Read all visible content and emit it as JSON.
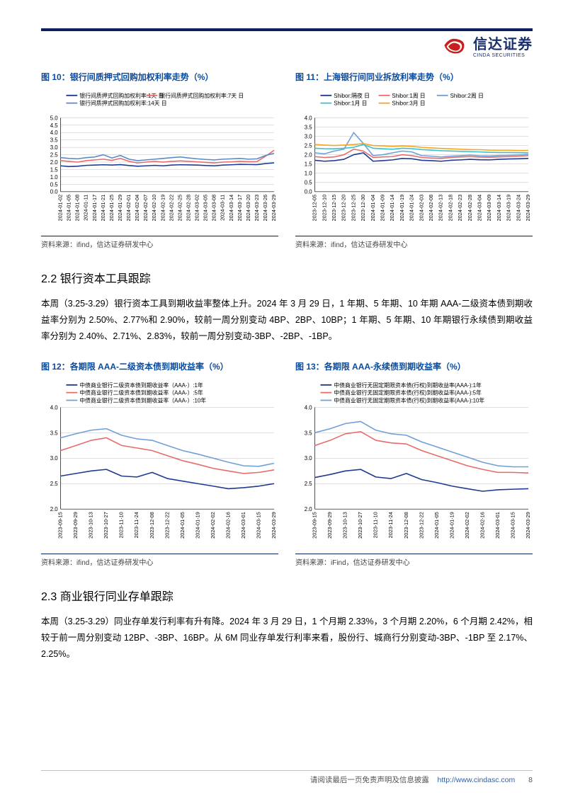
{
  "company": {
    "name": "信达证券",
    "sub": "CINDA SECURITIES"
  },
  "footer": {
    "disclaimer": "请阅读最后一页免责声明及信息披露",
    "url": "http://www.cindasc.com",
    "page": "8"
  },
  "charts": {
    "fig10": {
      "label": "图 10：",
      "title": "银行间质押式回购加权利率走势（%）",
      "source": "资料来源：ifind，信达证券研发中心",
      "legend": [
        {
          "name": "银行间质押式回购加权利率:1天 日",
          "color": "#1f3a93"
        },
        {
          "name": "银行间质押式回购加权利率:7天 日",
          "color": "#e86b6b"
        },
        {
          "name": "银行间质押式回购加权利率:14天 日",
          "color": "#5a89c7"
        }
      ],
      "y": {
        "min": 0.0,
        "max": 5.0,
        "step": 0.5,
        "fmt": 1
      },
      "x": [
        "2024-01-02",
        "2024-01-05",
        "2024-01-08",
        "2024-01-11",
        "2024-01-17",
        "2024-01-21",
        "2024-01-25",
        "2024-01-29",
        "2024-02-01",
        "2024-02-04",
        "2024-02-07",
        "2024-02-10",
        "2024-02-19",
        "2024-02-22",
        "2024-02-25",
        "2024-02-28",
        "2024-03-02",
        "2024-03-05",
        "2024-03-08",
        "2024-03-11",
        "2024-03-14",
        "2024-03-17",
        "2024-03-20",
        "2024-03-23",
        "2024-03-26",
        "2024-03-29"
      ],
      "series": [
        [
          1.75,
          1.7,
          1.72,
          1.78,
          1.8,
          1.82,
          1.8,
          1.83,
          1.77,
          1.72,
          1.75,
          1.78,
          1.75,
          1.8,
          1.82,
          1.81,
          1.8,
          1.77,
          1.75,
          1.8,
          1.82,
          1.85,
          1.84,
          1.83,
          1.9,
          1.95
        ],
        [
          2.1,
          2.05,
          2.0,
          2.1,
          2.15,
          2.2,
          2.12,
          2.25,
          2.05,
          1.95,
          2.0,
          2.05,
          2.0,
          2.05,
          2.08,
          2.05,
          2.02,
          1.98,
          1.95,
          2.0,
          2.02,
          2.05,
          2.03,
          2.04,
          2.4,
          2.8
        ],
        [
          2.3,
          2.25,
          2.22,
          2.3,
          2.35,
          2.5,
          2.28,
          2.45,
          2.2,
          2.1,
          2.15,
          2.2,
          2.25,
          2.3,
          2.35,
          2.28,
          2.22,
          2.18,
          2.15,
          2.2,
          2.22,
          2.25,
          2.2,
          2.22,
          2.45,
          2.6
        ]
      ],
      "bg": "#ffffff",
      "grid": "#bfbfbf",
      "axis_fontsize": 8
    },
    "fig11": {
      "label": "图 11：",
      "title": "上海银行间同业拆放利率走势（%）",
      "source": "资料来源：ifind，信达证券研发中心",
      "legend": [
        {
          "name": "Shibor:隔夜 日",
          "color": "#1f3a93"
        },
        {
          "name": "Shibor:1周 日",
          "color": "#e86b6b"
        },
        {
          "name": "Shibor:2周 日",
          "color": "#6f9fd8"
        },
        {
          "name": "Shibor:1月 日",
          "color": "#39c2c9"
        },
        {
          "name": "Shibor:3月 日",
          "color": "#f5a623"
        }
      ],
      "y": {
        "min": 0.0,
        "max": 4.0,
        "step": 0.5,
        "fmt": 1
      },
      "x": [
        "2023-12-05",
        "2023-12-10",
        "2023-12-15",
        "2023-12-20",
        "2023-12-25",
        "2023-12-30",
        "2024-01-04",
        "2024-01-09",
        "2024-01-14",
        "2024-01-19",
        "2024-01-24",
        "2024-02-03",
        "2024-02-08",
        "2024-02-13",
        "2024-02-18",
        "2024-02-23",
        "2024-02-28",
        "2024-03-04",
        "2024-03-09",
        "2024-03-14",
        "2024-03-19",
        "2024-03-24",
        "2024-03-29"
      ],
      "series": [
        [
          1.7,
          1.65,
          1.68,
          1.75,
          2.0,
          2.1,
          1.65,
          1.68,
          1.72,
          1.8,
          1.78,
          1.7,
          1.68,
          1.65,
          1.7,
          1.72,
          1.75,
          1.73,
          1.72,
          1.75,
          1.77,
          1.78,
          1.8
        ],
        [
          1.9,
          1.85,
          1.88,
          2.0,
          2.3,
          2.2,
          1.85,
          1.88,
          1.9,
          2.0,
          1.95,
          1.85,
          1.82,
          1.8,
          1.85,
          1.88,
          1.9,
          1.87,
          1.86,
          1.88,
          1.9,
          1.92,
          1.95
        ],
        [
          2.1,
          2.05,
          2.2,
          2.3,
          3.2,
          2.6,
          1.95,
          2.0,
          2.1,
          2.2,
          2.15,
          1.95,
          1.92,
          1.88,
          1.92,
          1.95,
          1.98,
          1.94,
          1.93,
          1.96,
          1.97,
          1.99,
          2.02
        ],
        [
          2.35,
          2.33,
          2.32,
          2.35,
          2.4,
          2.55,
          2.35,
          2.32,
          2.3,
          2.35,
          2.33,
          2.28,
          2.25,
          2.22,
          2.2,
          2.18,
          2.17,
          2.15,
          2.13,
          2.12,
          2.12,
          2.11,
          2.1
        ],
        [
          2.55,
          2.52,
          2.5,
          2.52,
          2.55,
          2.6,
          2.5,
          2.48,
          2.45,
          2.48,
          2.45,
          2.4,
          2.37,
          2.34,
          2.32,
          2.3,
          2.28,
          2.27,
          2.25,
          2.24,
          2.24,
          2.23,
          2.23
        ]
      ],
      "bg": "#ffffff",
      "grid": "#bfbfbf",
      "axis_fontsize": 8
    },
    "fig12": {
      "label": "图 12：",
      "title": "各期限 AAA-二级资本债到期收益率（%）",
      "source": "资料来源：ifind，信达证券研发中心",
      "legend": [
        {
          "name": "中债商业银行二级资本债到期收益率（AAA-）:1年",
          "color": "#1f3a93"
        },
        {
          "name": "中债商业银行二级资本债到期收益率（AAA-）:5年",
          "color": "#e86b6b"
        },
        {
          "name": "中债商业银行二级资本债到期收益率（AAA-）:10年",
          "color": "#6f9fd8"
        }
      ],
      "y": {
        "min": 2.0,
        "max": 4.0,
        "step": 0.5,
        "fmt": 1
      },
      "x": [
        "2023-09-15",
        "2023-09-29",
        "2023-10-13",
        "2023-10-27",
        "2023-11-10",
        "2023-11-24",
        "2023-12-08",
        "2023-12-22",
        "2024-01-05",
        "2024-01-19",
        "2024-02-02",
        "2024-02-16",
        "2024-03-01",
        "2024-03-15",
        "2024-03-29"
      ],
      "series": [
        [
          2.65,
          2.7,
          2.75,
          2.78,
          2.65,
          2.63,
          2.72,
          2.6,
          2.55,
          2.5,
          2.45,
          2.4,
          2.42,
          2.45,
          2.5
        ],
        [
          3.15,
          3.25,
          3.35,
          3.4,
          3.25,
          3.2,
          3.15,
          3.05,
          2.95,
          2.88,
          2.8,
          2.75,
          2.7,
          2.72,
          2.77
        ],
        [
          3.4,
          3.48,
          3.55,
          3.58,
          3.45,
          3.38,
          3.35,
          3.25,
          3.15,
          3.08,
          3.0,
          2.92,
          2.85,
          2.84,
          2.9
        ]
      ],
      "bg": "#ffffff",
      "grid": "#bfbfbf",
      "axis_fontsize": 8
    },
    "fig13": {
      "label": "图 13：",
      "title": "各期限 AAA-永续债到期收益率（%）",
      "source": "资料来源：iFind，信达证券研发中心",
      "legend": [
        {
          "name": "中债商业银行无固定期限资本债(行权)到期收益率(AAA-):1年",
          "color": "#1f3a93"
        },
        {
          "name": "中债商业银行无固定期限资本债(行权)到期收益率(AAA-):5年",
          "color": "#e86b6b"
        },
        {
          "name": "中债商业银行无固定期限资本债(行权)到期收益率(AAA-):10年",
          "color": "#6f9fd8"
        }
      ],
      "y": {
        "min": 2.0,
        "max": 4.0,
        "step": 0.5,
        "fmt": 1
      },
      "x": [
        "2023-09-15",
        "2023-09-29",
        "2023-10-13",
        "2023-10-27",
        "2023-11-10",
        "2023-11-24",
        "2023-12-08",
        "2023-12-22",
        "2024-01-05",
        "2024-01-19",
        "2024-02-02",
        "2024-02-16",
        "2024-03-01",
        "2024-03-15",
        "2024-03-29"
      ],
      "series": [
        [
          2.62,
          2.68,
          2.75,
          2.78,
          2.63,
          2.6,
          2.7,
          2.58,
          2.52,
          2.45,
          2.4,
          2.35,
          2.38,
          2.39,
          2.4
        ],
        [
          3.25,
          3.35,
          3.48,
          3.52,
          3.35,
          3.3,
          3.28,
          3.15,
          3.05,
          2.95,
          2.85,
          2.78,
          2.72,
          2.72,
          2.71
        ],
        [
          3.5,
          3.58,
          3.68,
          3.72,
          3.55,
          3.48,
          3.45,
          3.32,
          3.22,
          3.12,
          3.02,
          2.92,
          2.85,
          2.83,
          2.83
        ]
      ],
      "bg": "#ffffff",
      "grid": "#bfbfbf",
      "axis_fontsize": 8
    }
  },
  "sections": {
    "s22": {
      "heading": "2.2 银行资本工具跟踪",
      "body": "本周（3.25-3.29）银行资本工具到期收益率整体上升。2024 年 3 月 29 日，1 年期、5 年期、10 年期 AAA-二级资本债到期收益率分别为 2.50%、2.77%和 2.90%，较前一周分别变动 4BP、2BP、10BP；1 年期、5 年期、10 年期银行永续债到期收益率分别为 2.40%、2.71%、2.83%，较前一周分别变动-3BP、-2BP、-1BP。"
    },
    "s23": {
      "heading": "2.3 商业银行同业存单跟踪",
      "body": "本周（3.25-3.29）同业存单发行利率有升有降。2024 年 3 月 29 日，1 个月期 2.33%，3 个月期 2.20%，6 个月期 2.42%，相较于前一周分别变动 12BP、-3BP、16BP。从 6M 同业存单发行利率来看，股份行、城商行分别变动-3BP、-1BP 至 2.17%、2.25%。"
    }
  }
}
